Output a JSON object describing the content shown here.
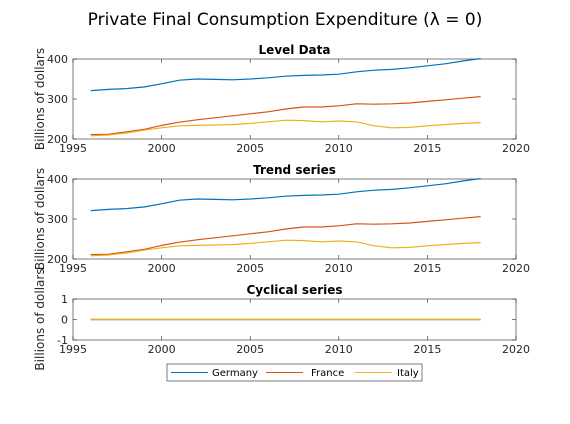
{
  "figure": {
    "title": "Private Final Consumption Expenditure (λ = 0)"
  },
  "legend": {
    "placement": "bottom-center",
    "entries": [
      "Germany",
      "France",
      "Italy"
    ]
  },
  "colors": {
    "Germany": "#0072BD",
    "France": "#D95319",
    "Italy": "#EDB120",
    "axis": "#262626"
  },
  "chart_data": [
    {
      "type": "line",
      "title": "Level Data",
      "ylabel": "Billions of dollars",
      "xlabel": "",
      "xlim": [
        1995,
        2020
      ],
      "ylim": [
        200,
        400
      ],
      "xticks": [
        1995,
        2000,
        2005,
        2010,
        2015,
        2020
      ],
      "yticks": [
        200,
        300,
        400
      ],
      "grid": false,
      "x": [
        1996,
        1997,
        1998,
        1999,
        2000,
        2001,
        2002,
        2003,
        2004,
        2005,
        2006,
        2007,
        2008,
        2009,
        2010,
        2011,
        2012,
        2013,
        2014,
        2015,
        2016,
        2017,
        2018
      ],
      "series": [
        {
          "name": "Germany",
          "values": [
            321,
            324,
            326,
            330,
            338,
            347,
            350,
            349,
            348,
            350,
            353,
            357,
            359,
            360,
            362,
            368,
            372,
            374,
            378,
            383,
            388,
            395,
            401
          ]
        },
        {
          "name": "France",
          "values": [
            211,
            212,
            218,
            224,
            234,
            242,
            248,
            253,
            258,
            263,
            268,
            275,
            280,
            280,
            283,
            288,
            287,
            288,
            290,
            294,
            298,
            302,
            306
          ]
        },
        {
          "name": "Italy",
          "values": [
            208,
            210,
            215,
            222,
            228,
            233,
            234,
            235,
            236,
            239,
            243,
            247,
            246,
            243,
            245,
            243,
            233,
            228,
            229,
            233,
            236,
            239,
            241
          ]
        }
      ]
    },
    {
      "type": "line",
      "title": "Trend series",
      "ylabel": "Billions of dollars",
      "xlabel": "",
      "xlim": [
        1995,
        2020
      ],
      "ylim": [
        200,
        400
      ],
      "xticks": [
        1995,
        2000,
        2005,
        2010,
        2015,
        2020
      ],
      "yticks": [
        200,
        300,
        400
      ],
      "grid": false,
      "x": [
        1996,
        1997,
        1998,
        1999,
        2000,
        2001,
        2002,
        2003,
        2004,
        2005,
        2006,
        2007,
        2008,
        2009,
        2010,
        2011,
        2012,
        2013,
        2014,
        2015,
        2016,
        2017,
        2018
      ],
      "series": [
        {
          "name": "Germany",
          "values": [
            321,
            324,
            326,
            330,
            338,
            347,
            350,
            349,
            348,
            350,
            353,
            357,
            359,
            360,
            362,
            368,
            372,
            374,
            378,
            383,
            388,
            395,
            401
          ]
        },
        {
          "name": "France",
          "values": [
            211,
            212,
            218,
            224,
            234,
            242,
            248,
            253,
            258,
            263,
            268,
            275,
            280,
            280,
            283,
            288,
            287,
            288,
            290,
            294,
            298,
            302,
            306
          ]
        },
        {
          "name": "Italy",
          "values": [
            208,
            210,
            215,
            222,
            228,
            233,
            234,
            235,
            236,
            239,
            243,
            247,
            246,
            243,
            245,
            243,
            233,
            228,
            229,
            233,
            236,
            239,
            241
          ]
        }
      ]
    },
    {
      "type": "line",
      "title": "Cyclical series",
      "ylabel": "Billions of dollars",
      "xlabel": "",
      "xlim": [
        1995,
        2020
      ],
      "ylim": [
        -1,
        1
      ],
      "xticks": [
        1995,
        2000,
        2005,
        2010,
        2015,
        2020
      ],
      "yticks": [
        -1,
        0,
        1
      ],
      "grid": false,
      "x": [
        1996,
        2018
      ],
      "series": [
        {
          "name": "Germany",
          "values": [
            0,
            0
          ]
        },
        {
          "name": "France",
          "values": [
            0,
            0
          ]
        },
        {
          "name": "Italy",
          "values": [
            0,
            0
          ]
        }
      ]
    }
  ]
}
